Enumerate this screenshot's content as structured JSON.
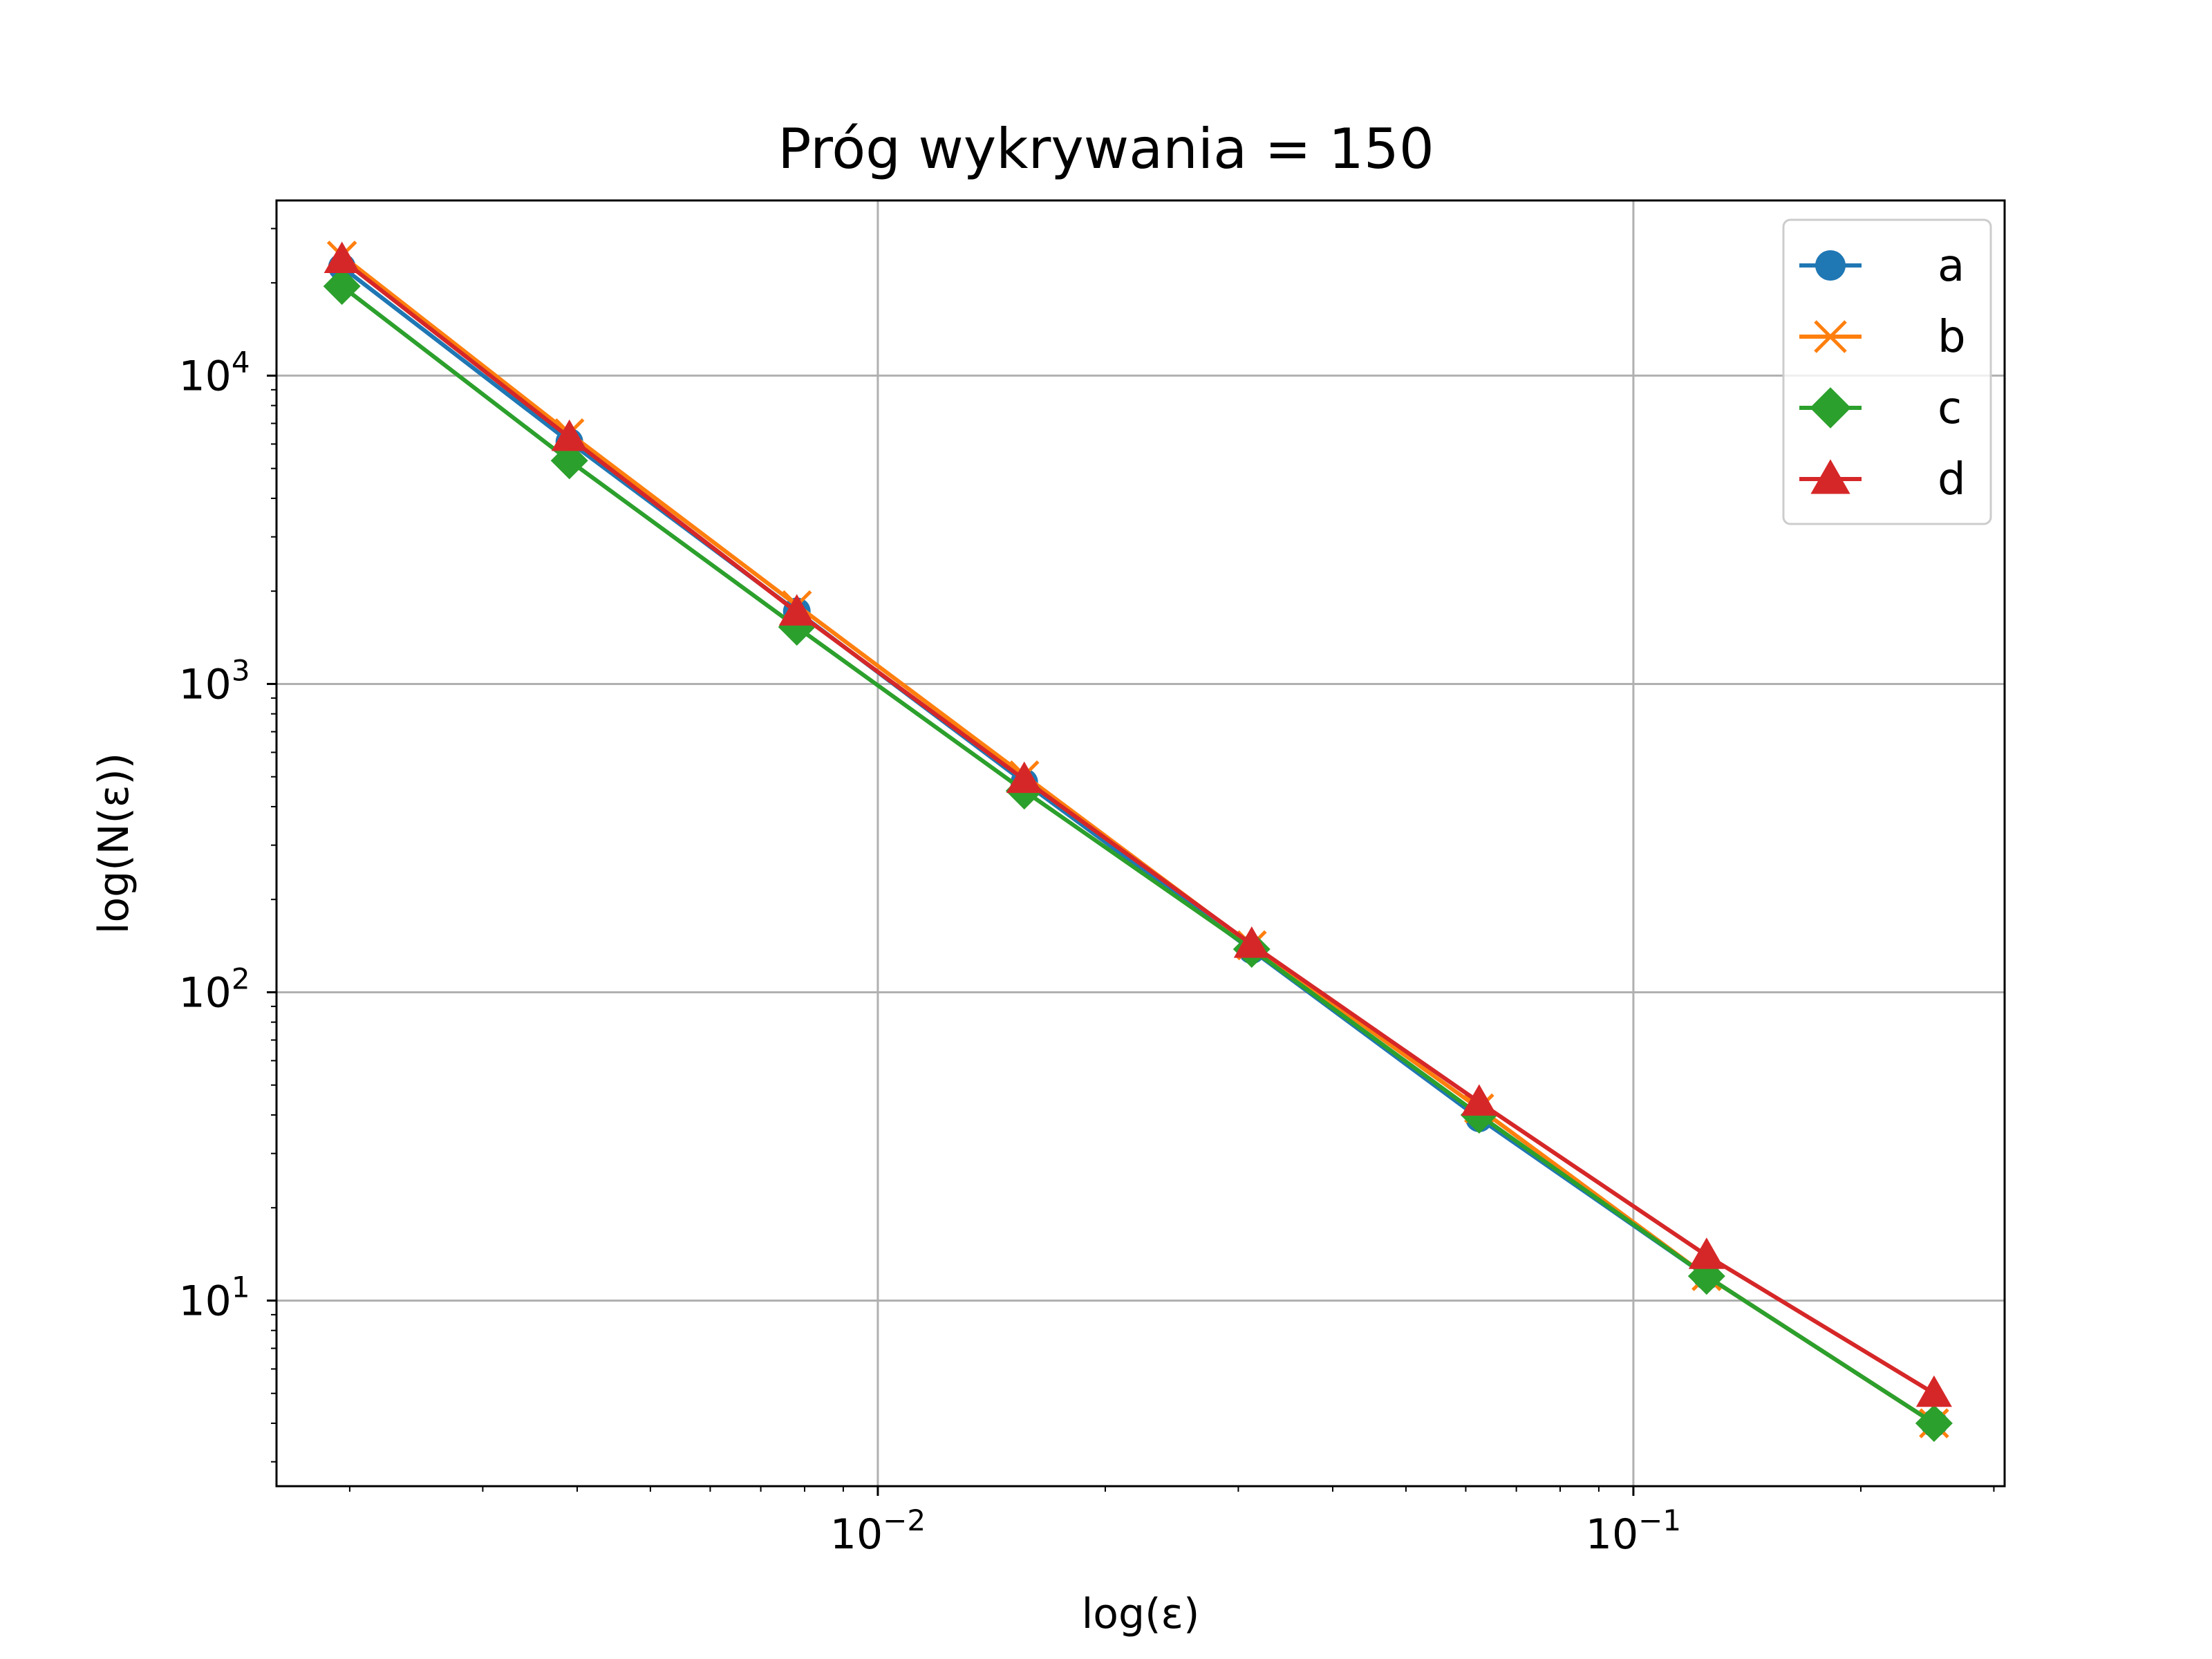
{
  "chart_data": {
    "type": "line",
    "title": "Próg wykrywania = 150",
    "xlabel": "log(ε)",
    "ylabel": "log(N(ε))",
    "xscale": "log",
    "yscale": "log",
    "xlim": [
      0.0016,
      0.31
    ],
    "ylim": [
      2.5,
      37000
    ],
    "grid": true,
    "legend_position": "upper-right",
    "x": [
      0.001953125,
      0.00390625,
      0.0078125,
      0.015625,
      0.03125,
      0.0625,
      0.125,
      0.25
    ],
    "x_ticks": [
      {
        "value": 0.01,
        "base": "10",
        "exp": "−2"
      },
      {
        "value": 0.1,
        "base": "10",
        "exp": "−1"
      }
    ],
    "y_ticks": [
      {
        "value": 10,
        "base": "10",
        "exp": "1"
      },
      {
        "value": 100,
        "base": "10",
        "exp": "2"
      },
      {
        "value": 1000,
        "base": "10",
        "exp": "3"
      },
      {
        "value": 10000,
        "base": "10",
        "exp": "4"
      }
    ],
    "series": [
      {
        "name": "a",
        "color": "#1f77b4",
        "marker": "circle",
        "values": [
          22500,
          6100,
          1720,
          480,
          137,
          39,
          12,
          4
        ]
      },
      {
        "name": "b",
        "color": "#ff7f0e",
        "marker": "x",
        "values": [
          24500,
          6500,
          1800,
          505,
          142,
          42,
          12,
          4
        ]
      },
      {
        "name": "c",
        "color": "#2ca02c",
        "marker": "diamond",
        "values": [
          19500,
          5300,
          1530,
          450,
          138,
          40,
          12,
          4
        ]
      },
      {
        "name": "d",
        "color": "#d62728",
        "marker": "triangle",
        "values": [
          23800,
          6300,
          1710,
          490,
          143,
          44,
          14,
          5
        ]
      }
    ]
  }
}
